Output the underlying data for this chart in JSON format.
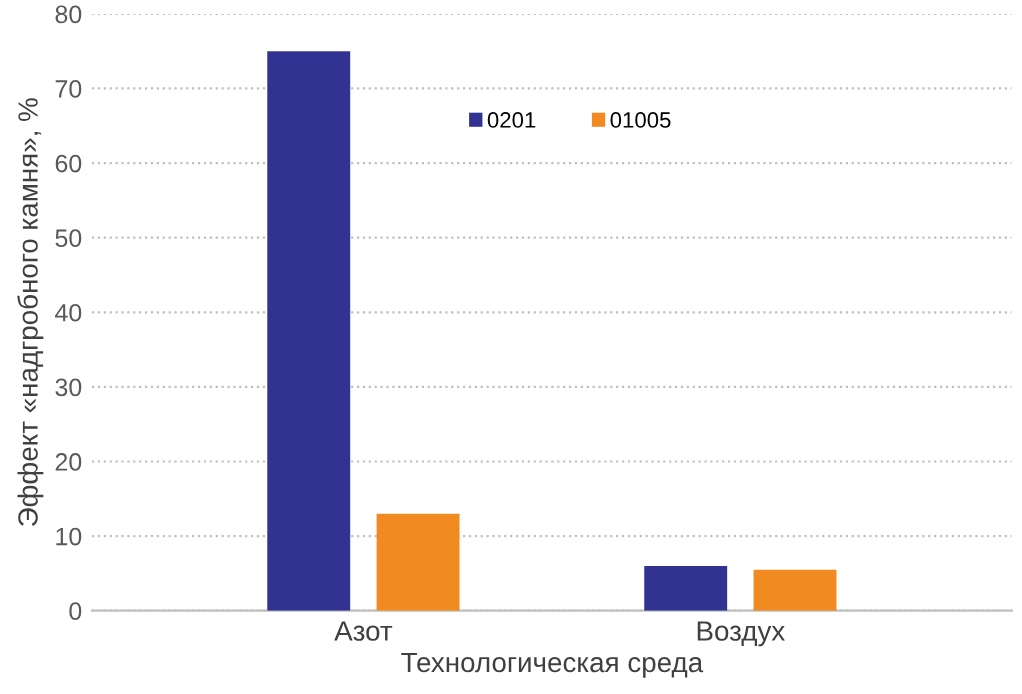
{
  "chart_data": {
    "type": "bar",
    "xlabel": "Технологическая среда",
    "ylabel": "Эффект «надгробного камня», %",
    "categories": [
      "Азот",
      "Воздух"
    ],
    "series": [
      {
        "name": "0201",
        "color": "#313291",
        "values": [
          75,
          6
        ]
      },
      {
        "name": "01005",
        "color": "#f28a22",
        "values": [
          13,
          5.5
        ]
      }
    ],
    "ylim": [
      0,
      80
    ],
    "yticks": [
      0,
      10,
      20,
      30,
      40,
      50,
      60,
      70,
      80
    ],
    "grid": "y",
    "legend": "top"
  }
}
